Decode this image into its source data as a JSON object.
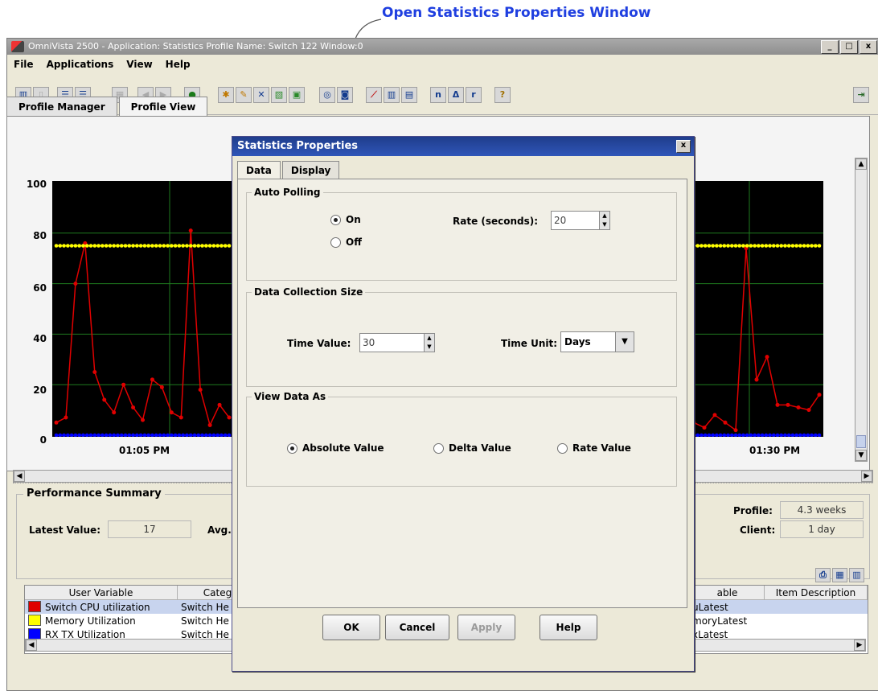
{
  "annotation": {
    "text": "Open Statistics Properties Window",
    "color": "#1f3fe0"
  },
  "window": {
    "title": "OmniVista 2500 -  Application: Statistics  Profile Name: Switch 122  Window:0",
    "controls": [
      "_",
      "□",
      "x"
    ]
  },
  "menubar": {
    "items": [
      "File",
      "Applications",
      "View",
      "Help"
    ]
  },
  "toolbar": {
    "icons": [
      "layout-icon",
      "layout-icon",
      "split-icon",
      "split-icon",
      "grid-icon",
      "back-icon",
      "forward-icon",
      "refresh-icon",
      "star-icon",
      "edit-icon",
      "delete-icon",
      "chart-icon",
      "properties-icon",
      "poll-icon",
      "camera-icon",
      "line-chart-icon",
      "bar-chart-icon",
      "stacked-chart-icon",
      "normal-icon",
      "delta-icon",
      "rate-icon",
      "help-icon",
      "exit-icon"
    ]
  },
  "tabs": [
    {
      "label": "Profile Manager"
    },
    {
      "label": "Profile View"
    }
  ],
  "chart": {
    "y_ticks": [
      "100",
      "80",
      "60",
      "40",
      "20",
      "0"
    ],
    "x_ticks": [
      "01:05 PM",
      "01:30 PM"
    ]
  },
  "chart_data": {
    "type": "line",
    "ylim": [
      0,
      100
    ],
    "xlabel": "",
    "ylabel": "",
    "title": "",
    "series": [
      {
        "name": "Switch CPU utilization",
        "color": "#e00000",
        "left": [
          5,
          7,
          60,
          76,
          25,
          14,
          9,
          20,
          11,
          6,
          22,
          19,
          9,
          7,
          81,
          18,
          4,
          12,
          7
        ],
        "right": [
          5,
          3,
          8,
          5,
          2,
          74,
          22,
          31,
          12,
          12,
          11,
          10,
          16
        ]
      },
      {
        "name": "Memory Utilization",
        "color": "#ffff00",
        "left": [
          75,
          75,
          75,
          75,
          75,
          75,
          75,
          75,
          75,
          75,
          75,
          75,
          75,
          75,
          75,
          75,
          75,
          75,
          75
        ],
        "right": [
          75,
          75,
          75,
          75,
          75,
          75,
          75,
          75,
          75,
          75,
          75,
          75,
          75
        ]
      },
      {
        "name": "RX TX Utilization",
        "color": "#0000ff",
        "left": [
          0,
          0,
          0,
          0,
          0,
          0,
          0,
          0,
          0,
          0,
          0,
          0,
          0,
          0,
          0,
          0,
          0,
          0,
          0
        ],
        "right": [
          0,
          0,
          0,
          0,
          0,
          0,
          0,
          0,
          0,
          0,
          0,
          0,
          0
        ]
      }
    ]
  },
  "performance": {
    "title": "Performance Summary",
    "latest_label": "Latest Value:",
    "latest_value": "17",
    "avg_label": "Avg.",
    "profile_label": "Profile:",
    "profile_value": "4.3 weeks",
    "client_label": "Client:",
    "client_value": "1 day"
  },
  "table": {
    "columns": [
      "User Variable",
      "Categ",
      "able",
      "Item Description"
    ],
    "rows": [
      {
        "swatch": "#e00000",
        "variable": "Switch CPU utilization",
        "category": "Switch He",
        "item": "uLatest"
      },
      {
        "swatch": "#ffff00",
        "variable": "Memory Utilization",
        "category": "Switch He",
        "item": "moryLatest"
      },
      {
        "swatch": "#0000ff",
        "variable": "RX TX Utilization",
        "category": "Switch He",
        "item": "xLatest"
      }
    ]
  },
  "dialog": {
    "title": "Statistics Properties",
    "tabs": [
      "Data",
      "Display"
    ],
    "auto_polling": {
      "title": "Auto Polling",
      "on_label": "On",
      "off_label": "Off",
      "rate_label": "Rate (seconds):",
      "rate_value": "20"
    },
    "collection": {
      "title": "Data Collection Size",
      "time_value_label": "Time Value:",
      "time_value": "30",
      "time_unit_label": "Time Unit:",
      "time_unit": "Days"
    },
    "view_as": {
      "title": "View Data As",
      "absolute": "Absolute Value",
      "delta": "Delta Value",
      "rate": "Rate Value"
    },
    "buttons": {
      "ok": "OK",
      "cancel": "Cancel",
      "apply": "Apply",
      "help": "Help"
    }
  }
}
